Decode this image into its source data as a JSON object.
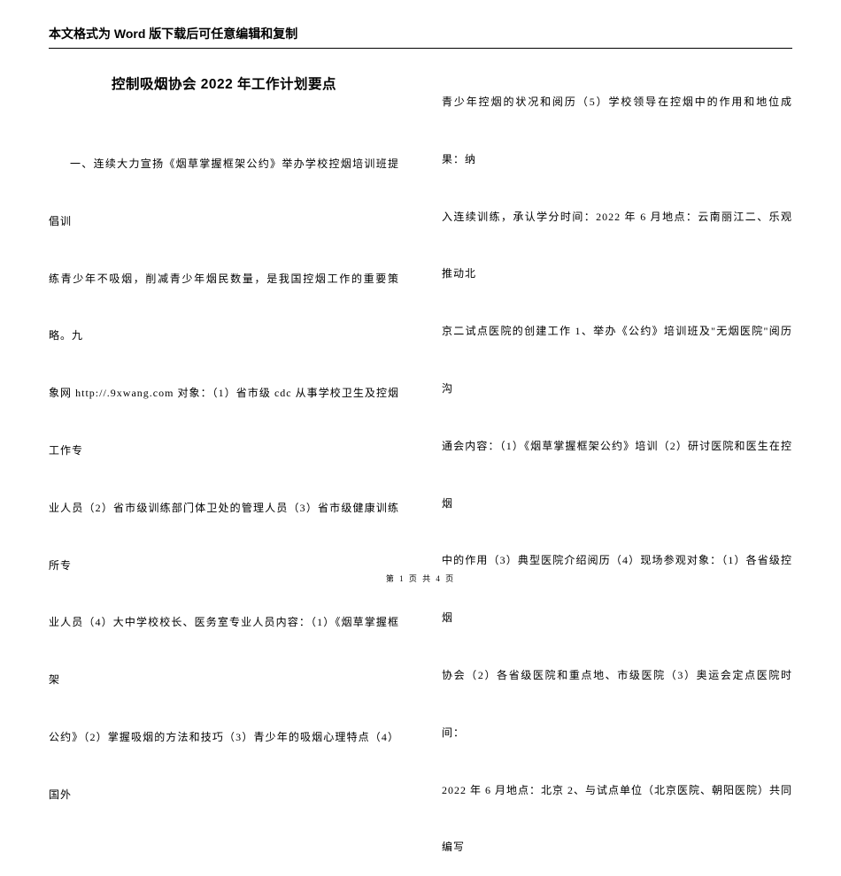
{
  "header": {
    "note": "本文格式为 Word 版下载后可任意编辑和复制"
  },
  "document": {
    "title": "控制吸烟协会 2022 年工作计划要点",
    "left_column": {
      "p1": "一、连续大力宣扬《烟草掌握框架公约》举办学校控烟培训班提倡训",
      "p2": "练青少年不吸烟，削减青少年烟民数量，是我国控烟工作的重要策略。九",
      "p3": "象网 http://.9xwang.com 对象：（1）省市级 cdc 从事学校卫生及控烟工作专",
      "p4": "业人员（2）省市级训练部门体卫处的管理人员（3）省市级健康训练所专",
      "p5": "业人员（4）大中学校校长、医务室专业人员内容：（1）《烟草掌握框架",
      "p6": "公约》（2）掌握吸烟的方法和技巧（3）青少年的吸烟心理特点（4）国外"
    },
    "right_column": {
      "p1": "青少年控烟的状况和阅历（5）学校领导在控烟中的作用和地位成果：纳",
      "p2": "入连续训练，承认学分时间：2022 年 6 月地点：云南丽江二、乐观推动北",
      "p3": "京二试点医院的创建工作 1、举办《公约》培训班及\"无烟医院\"阅历沟",
      "p4": "通会内容：（1）《烟草掌握框架公约》培训（2）研讨医院和医生在控烟",
      "p5": "中的作用（3）典型医院介绍阅历（4）现场参观对象：（1）各省级控烟",
      "p6": "协会（2）各省级医院和重点地、市级医院（3）奥运会定点医院时间：",
      "p7": "2022 年 6 月地点：北京 2、与试点单位（北京医院、朝阳医院）共同编写"
    }
  },
  "footer": {
    "text": "第 1 页 共 4 页"
  },
  "colors": {
    "background": "#ffffff",
    "text": "#000000",
    "border": "#000000"
  },
  "typography": {
    "header_fontsize": 14,
    "title_fontsize": 15.5,
    "body_fontsize": 12,
    "footer_fontsize": 9,
    "body_lineheight": 5.4
  }
}
